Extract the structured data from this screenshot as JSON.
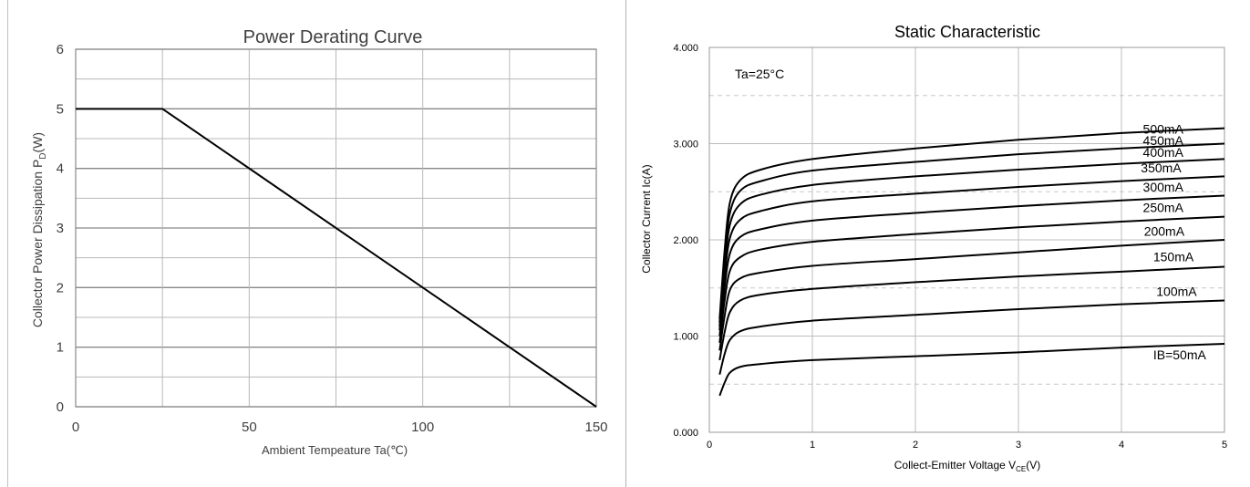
{
  "chart_data": [
    {
      "type": "line",
      "title": "Power Derating Curve",
      "xlabel": "Ambient Tempeature Ta(℃)",
      "ylabel_main": "Collector Power Dissipation   P",
      "ylabel_sub": "D",
      "ylabel_unit": "(W)",
      "xlim": [
        0,
        150
      ],
      "ylim": [
        0,
        6
      ],
      "xticks": [
        0,
        50,
        100,
        150
      ],
      "xtick_labels": [
        "0",
        "50",
        "100",
        "150"
      ],
      "yticks": [
        0,
        1,
        2,
        3,
        4,
        5,
        6
      ],
      "ytick_labels": [
        "0",
        "1",
        "2",
        "3",
        "4",
        "5",
        "6"
      ],
      "grid": true,
      "series": [
        {
          "x": [
            0,
            25,
            150
          ],
          "y": [
            5,
            5,
            0
          ]
        }
      ]
    },
    {
      "type": "line",
      "title": "Static Characteristic",
      "annotation": "Ta=25°C",
      "xlabel_main": "Collect-Emitter Voltage  V",
      "xlabel_sub": "CE",
      "xlabel_unit": "(V)",
      "ylabel": "Collector Current  Ic(A)",
      "xlim": [
        0,
        5
      ],
      "ylim": [
        0,
        4
      ],
      "xticks": [
        0,
        1,
        2,
        3,
        4,
        5
      ],
      "xtick_labels": [
        "0",
        "1",
        "2",
        "3",
        "4",
        "5"
      ],
      "yticks": [
        0,
        1,
        2,
        3,
        4
      ],
      "ytick_labels": [
        "0.000",
        "1.000",
        "2.000",
        "3.000",
        "4.000"
      ],
      "grid": true,
      "series": [
        {
          "name": "IB=50mA",
          "x": [
            0.1,
            0.15,
            0.2,
            0.3,
            0.5,
            1,
            2,
            3,
            4,
            5
          ],
          "y": [
            0.38,
            0.52,
            0.62,
            0.68,
            0.71,
            0.75,
            0.79,
            0.83,
            0.88,
            0.92
          ]
        },
        {
          "name": "100mA",
          "x": [
            0.1,
            0.15,
            0.2,
            0.3,
            0.5,
            1,
            2,
            3,
            4,
            5
          ],
          "y": [
            0.6,
            0.82,
            0.96,
            1.05,
            1.1,
            1.16,
            1.22,
            1.28,
            1.33,
            1.37
          ]
        },
        {
          "name": "150mA",
          "x": [
            0.1,
            0.15,
            0.2,
            0.3,
            0.5,
            1,
            2,
            3,
            4,
            5
          ],
          "y": [
            0.75,
            1.05,
            1.25,
            1.37,
            1.43,
            1.49,
            1.56,
            1.62,
            1.67,
            1.72
          ]
        },
        {
          "name": "200mA",
          "x": [
            0.1,
            0.15,
            0.2,
            0.3,
            0.5,
            1,
            2,
            3,
            4,
            5
          ],
          "y": [
            0.85,
            1.22,
            1.48,
            1.6,
            1.66,
            1.73,
            1.8,
            1.87,
            1.94,
            2.0
          ]
        },
        {
          "name": "250mA",
          "x": [
            0.1,
            0.15,
            0.2,
            0.3,
            0.5,
            1,
            2,
            3,
            4,
            5
          ],
          "y": [
            0.93,
            1.38,
            1.68,
            1.82,
            1.9,
            1.98,
            2.06,
            2.13,
            2.19,
            2.24
          ]
        },
        {
          "name": "300mA",
          "x": [
            0.1,
            0.15,
            0.2,
            0.3,
            0.5,
            1,
            2,
            3,
            4,
            5
          ],
          "y": [
            1.0,
            1.52,
            1.86,
            2.03,
            2.11,
            2.2,
            2.28,
            2.35,
            2.41,
            2.46
          ]
        },
        {
          "name": "350mA",
          "x": [
            0.1,
            0.15,
            0.2,
            0.3,
            0.5,
            1,
            2,
            3,
            4,
            5
          ],
          "y": [
            1.06,
            1.64,
            2.02,
            2.21,
            2.3,
            2.4,
            2.48,
            2.55,
            2.61,
            2.66
          ]
        },
        {
          "name": "400mA",
          "x": [
            0.1,
            0.15,
            0.2,
            0.3,
            0.5,
            1,
            2,
            3,
            4,
            5
          ],
          "y": [
            1.1,
            1.74,
            2.16,
            2.37,
            2.47,
            2.57,
            2.66,
            2.73,
            2.79,
            2.84
          ]
        },
        {
          "name": "450mA",
          "x": [
            0.1,
            0.15,
            0.2,
            0.3,
            0.5,
            1,
            2,
            3,
            4,
            5
          ],
          "y": [
            1.14,
            1.83,
            2.28,
            2.51,
            2.61,
            2.72,
            2.81,
            2.89,
            2.95,
            3.0
          ]
        },
        {
          "name": "500mA",
          "x": [
            0.1,
            0.15,
            0.2,
            0.3,
            0.5,
            1,
            2,
            3,
            4,
            5
          ],
          "y": [
            1.18,
            1.91,
            2.39,
            2.62,
            2.73,
            2.84,
            2.95,
            3.04,
            3.11,
            3.16
          ]
        }
      ]
    }
  ]
}
